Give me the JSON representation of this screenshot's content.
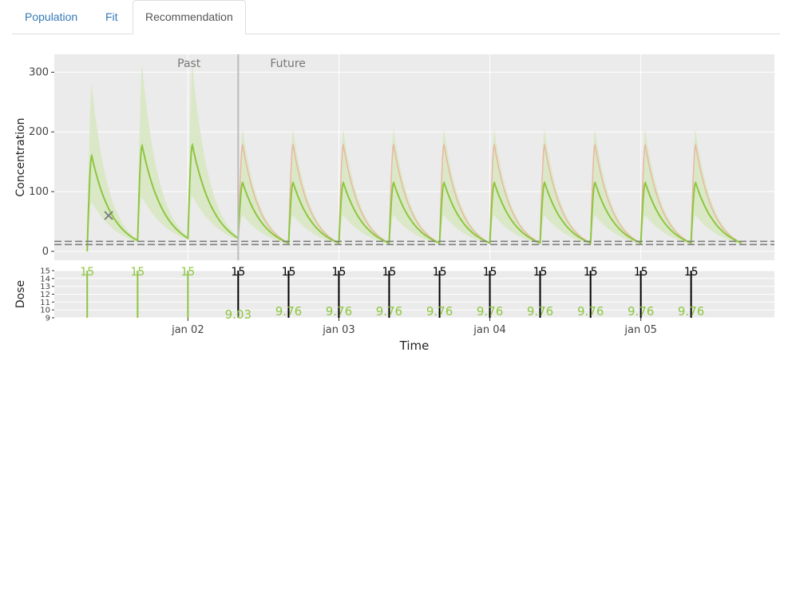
{
  "tabs": [
    {
      "label": "Population",
      "active": false
    },
    {
      "label": "Fit",
      "active": false
    },
    {
      "label": "Recommendation",
      "active": true
    }
  ],
  "colors": {
    "panel_bg": "#ebebeb",
    "grid": "#ffffff",
    "predicted_line": "#8dc63f",
    "predicted_band": "#d9e8c4",
    "population_line": "#e8b8a0",
    "past_dose": "#8dc63f",
    "future_dose": "#000000",
    "target_line": "#7f7f7f",
    "observation": "#808080",
    "now_line": "#bbbbbb"
  },
  "chart_data": [
    {
      "type": "line",
      "ylabel": "Concentration",
      "ylim": [
        -15,
        330
      ],
      "yticks": [
        0,
        100,
        200,
        300
      ],
      "grid": true,
      "annotations": {
        "past": "Past",
        "future": "Future"
      },
      "now_x": 2.333,
      "target_concentration": 14,
      "dose_times": [
        1.333,
        1.667,
        2.0,
        2.333,
        2.667,
        3.0,
        3.333,
        3.667,
        4.0,
        4.333,
        4.667,
        5.0,
        5.333
      ],
      "end_time": 5.667,
      "series": [
        {
          "name": "",
          "role": "predicted",
          "interval_peaks": [
            160,
            177,
            178,
            115,
            115,
            115,
            115,
            115,
            115,
            115,
            115,
            115,
            115
          ],
          "interval_troughs": [
            18,
            22,
            22,
            14,
            14,
            14,
            14,
            14,
            14,
            14,
            14,
            14,
            14
          ]
        },
        {
          "name": "",
          "role": "band_upper",
          "interval_peaks": [
            280,
            310,
            312,
            203,
            203,
            203,
            203,
            203,
            203,
            203,
            203,
            203,
            203
          ]
        },
        {
          "name": "",
          "role": "band_lower",
          "interval_peaks": [
            82,
            90,
            92,
            60,
            60,
            60,
            60,
            60,
            60,
            60,
            60,
            60,
            60
          ]
        },
        {
          "name": "",
          "role": "population",
          "interval_peaks": [
            null,
            null,
            null,
            178,
            178,
            178,
            178,
            178,
            178,
            178,
            178,
            178,
            178
          ]
        }
      ],
      "observations": [
        {
          "x": 1.475,
          "y": 60
        }
      ]
    },
    {
      "type": "bar",
      "ylabel": "Dose",
      "xlabel": "Time",
      "ylim": [
        9,
        15
      ],
      "yticks": [
        9,
        10,
        11,
        12,
        13,
        14,
        15
      ],
      "x_tick_values": [
        2,
        3,
        4,
        5
      ],
      "x_tick_labels": [
        "jan 02",
        "jan 03",
        "jan 04",
        "jan 05"
      ],
      "xlim": [
        1.115,
        5.885
      ],
      "x": [
        1.333,
        1.667,
        2.0,
        2.333,
        2.667,
        3.0,
        3.333,
        3.667,
        4.0,
        4.333,
        4.667,
        5.0,
        5.333
      ],
      "doses": [
        15,
        15,
        15,
        15,
        15,
        15,
        15,
        15,
        15,
        15,
        15,
        15,
        15
      ],
      "recommended": [
        null,
        null,
        null,
        "9.03",
        "9.76",
        "9.76",
        "9.76",
        "9.76",
        "9.76",
        "9.76",
        "9.76",
        "9.76",
        "9.76"
      ],
      "dose_labels": [
        "15",
        "15",
        "15",
        "15",
        "15",
        "15",
        "15",
        "15",
        "15",
        "15",
        "15",
        "15",
        "15"
      ],
      "past_count": 3
    }
  ]
}
